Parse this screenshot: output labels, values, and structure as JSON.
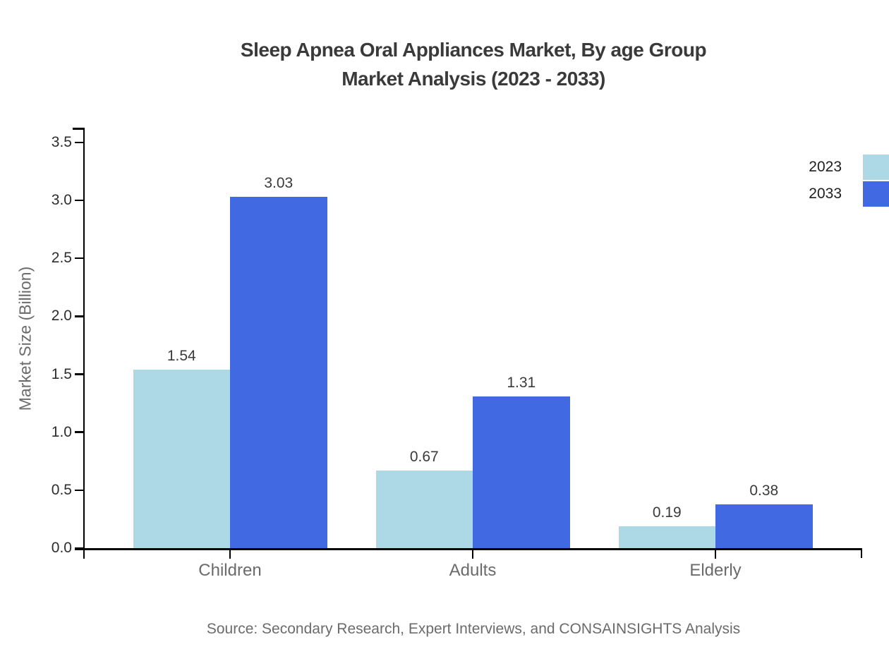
{
  "title": {
    "line1": "Sleep Apnea Oral Appliances Market, By age Group",
    "line2": "Market Analysis (2023 - 2033)"
  },
  "chart_data": {
    "type": "bar",
    "categories": [
      "Children",
      "Adults",
      "Elderly"
    ],
    "series": [
      {
        "name": "2023",
        "color": "#ADD8E6",
        "values": [
          1.54,
          0.67,
          0.19
        ]
      },
      {
        "name": "2033",
        "color": "#4169E1",
        "values": [
          3.03,
          1.31,
          0.38
        ]
      }
    ],
    "value_labels": [
      [
        "1.54",
        "0.67",
        "0.19"
      ],
      [
        "3.03",
        "1.31",
        "0.38"
      ]
    ],
    "title": "Sleep Apnea Oral Appliances Market, By age Group Market Analysis (2023 - 2033)",
    "xlabel": "",
    "ylabel": "Market Size (Billion)",
    "ylim": [
      0,
      3.5
    ],
    "ytick_labels": [
      "0.0",
      "0.5",
      "1.0",
      "1.5",
      "2.0",
      "2.5",
      "3.0",
      "3.5"
    ],
    "grid": false,
    "legend_position": "top-right"
  },
  "colors": {
    "axis": "#000000",
    "tick_label": "#2d2d2d",
    "category_label": "#6b6b6b",
    "value_label": "#3a3a3a",
    "title": "#3a3a3a",
    "source": "#6b6b6b"
  },
  "source": {
    "text": "Source: Secondary Research, Expert Interviews, and CONSAINSIGHTS Analysis"
  }
}
